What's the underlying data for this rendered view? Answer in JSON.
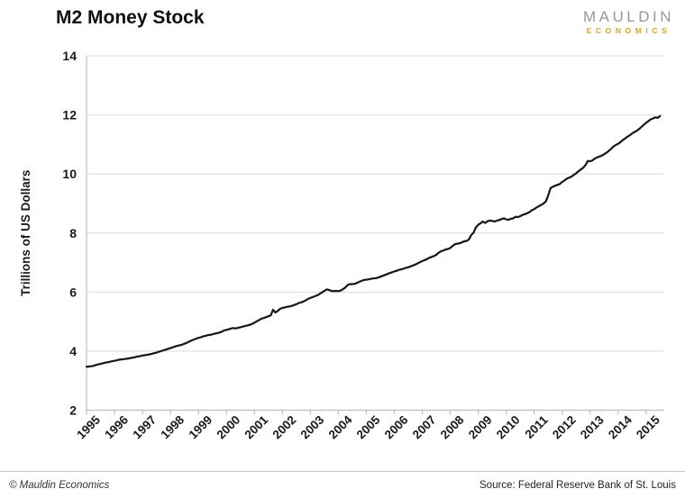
{
  "header": {
    "title": "M2 Money Stock"
  },
  "logo": {
    "line1": "MAULDIN",
    "line2": "ECONOMICS",
    "color_primary": "#96989a",
    "color_secondary": "#d9a41f"
  },
  "footer": {
    "copyright": "© Mauldin Economics",
    "source": "Source: Federal Reserve Bank of St. Louis"
  },
  "chart_data": {
    "type": "line",
    "title": "M2 Money Stock",
    "xlabel": "",
    "ylabel": "Trillions of US Dollars",
    "ylim": [
      2,
      14
    ],
    "yticks": [
      2,
      4,
      6,
      8,
      10,
      12,
      14
    ],
    "x_tick_years": [
      1995,
      1996,
      1997,
      1998,
      1999,
      2000,
      2001,
      2002,
      2003,
      2004,
      2005,
      2006,
      2007,
      2008,
      2009,
      2010,
      2011,
      2012,
      2013,
      2014,
      2015
    ],
    "x_range": [
      1995.0,
      2015.65
    ],
    "grid": "horizontal-only",
    "legend_position": "none",
    "line_color": "#161616",
    "grid_color": "#d9d9d9",
    "axis_color": "#bdbdbd",
    "series": [
      {
        "name": "M2 Money Stock",
        "x_start_year": 1995.0,
        "x_step_months": 1,
        "values": [
          3.47,
          3.48,
          3.49,
          3.5,
          3.53,
          3.55,
          3.57,
          3.59,
          3.61,
          3.62,
          3.64,
          3.66,
          3.67,
          3.69,
          3.71,
          3.72,
          3.73,
          3.74,
          3.75,
          3.77,
          3.78,
          3.8,
          3.82,
          3.83,
          3.85,
          3.86,
          3.88,
          3.89,
          3.91,
          3.93,
          3.95,
          3.98,
          4.0,
          4.03,
          4.05,
          4.08,
          4.1,
          4.13,
          4.16,
          4.18,
          4.2,
          4.22,
          4.25,
          4.28,
          4.32,
          4.36,
          4.39,
          4.42,
          4.45,
          4.47,
          4.5,
          4.52,
          4.54,
          4.55,
          4.57,
          4.59,
          4.61,
          4.63,
          4.66,
          4.7,
          4.72,
          4.74,
          4.77,
          4.78,
          4.77,
          4.79,
          4.81,
          4.83,
          4.85,
          4.87,
          4.89,
          4.92,
          4.96,
          5.01,
          5.05,
          5.1,
          5.12,
          5.15,
          5.18,
          5.21,
          5.4,
          5.31,
          5.36,
          5.43,
          5.46,
          5.48,
          5.5,
          5.51,
          5.53,
          5.56,
          5.59,
          5.63,
          5.65,
          5.68,
          5.72,
          5.77,
          5.8,
          5.83,
          5.86,
          5.89,
          5.94,
          5.99,
          6.04,
          6.09,
          6.07,
          6.04,
          6.03,
          6.04,
          6.03,
          6.05,
          6.1,
          6.15,
          6.24,
          6.27,
          6.27,
          6.28,
          6.31,
          6.35,
          6.38,
          6.41,
          6.42,
          6.43,
          6.45,
          6.46,
          6.47,
          6.49,
          6.52,
          6.55,
          6.58,
          6.61,
          6.64,
          6.67,
          6.7,
          6.72,
          6.75,
          6.77,
          6.79,
          6.82,
          6.84,
          6.87,
          6.9,
          6.93,
          6.97,
          7.01,
          7.05,
          7.08,
          7.12,
          7.16,
          7.19,
          7.22,
          7.26,
          7.33,
          7.38,
          7.41,
          7.44,
          7.46,
          7.49,
          7.56,
          7.62,
          7.64,
          7.65,
          7.68,
          7.72,
          7.73,
          7.78,
          7.93,
          8.01,
          8.19,
          8.28,
          8.33,
          8.39,
          8.34,
          8.4,
          8.42,
          8.41,
          8.39,
          8.42,
          8.44,
          8.47,
          8.5,
          8.46,
          8.45,
          8.48,
          8.5,
          8.55,
          8.54,
          8.57,
          8.61,
          8.64,
          8.67,
          8.71,
          8.77,
          8.81,
          8.86,
          8.91,
          8.95,
          9.0,
          9.07,
          9.27,
          9.52,
          9.57,
          9.6,
          9.63,
          9.66,
          9.73,
          9.78,
          9.84,
          9.87,
          9.91,
          9.97,
          10.02,
          10.09,
          10.15,
          10.21,
          10.3,
          10.44,
          10.43,
          10.46,
          10.52,
          10.56,
          10.59,
          10.62,
          10.67,
          10.72,
          10.78,
          10.85,
          10.93,
          10.98,
          11.02,
          11.08,
          11.15,
          11.2,
          11.26,
          11.31,
          11.37,
          11.42,
          11.46,
          11.52,
          11.59,
          11.66,
          11.73,
          11.79,
          11.85,
          11.88,
          11.92,
          11.9,
          11.96
        ]
      }
    ]
  }
}
